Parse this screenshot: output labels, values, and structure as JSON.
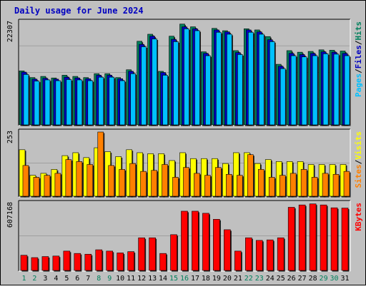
{
  "chart_data": [
    {
      "type": "bar",
      "title": "Daily usage for June 2024",
      "tick_labels": [
        "22307"
      ],
      "categories": [
        "1",
        "2",
        "3",
        "4",
        "5",
        "6",
        "7",
        "8",
        "9",
        "10",
        "11",
        "12",
        "13",
        "14",
        "15",
        "16",
        "17",
        "18",
        "19",
        "20",
        "21",
        "22",
        "23",
        "24",
        "25",
        "26",
        "27",
        "28",
        "29",
        "30",
        "31"
      ],
      "weekend_days": [
        "1",
        "2",
        "8",
        "9",
        "15",
        "16",
        "22",
        "23",
        "29",
        "30"
      ],
      "series": [
        {
          "name": "Hits",
          "color": "#00805c",
          "values": [
            14000,
            12300,
            12600,
            12200,
            12900,
            12600,
            12300,
            13300,
            13300,
            12300,
            14300,
            21600,
            23400,
            13900,
            22900,
            26000,
            25300,
            18900,
            24900,
            24300,
            19200,
            24800,
            24500,
            22800,
            15700,
            19200,
            18800,
            19000,
            19400,
            19300,
            19100
          ]
        },
        {
          "name": "Files",
          "color": "#0000c0",
          "values": [
            13700,
            11900,
            12100,
            11900,
            12400,
            12200,
            12000,
            12900,
            12900,
            12000,
            13900,
            20800,
            22900,
            13600,
            22100,
            25300,
            24800,
            18500,
            24500,
            24000,
            18700,
            24500,
            24000,
            22000,
            15200,
            18500,
            18200,
            18500,
            18900,
            18800,
            18500
          ]
        },
        {
          "name": "Pages",
          "color": "#00c0ff",
          "values": [
            13100,
            11400,
            11700,
            11500,
            11800,
            11700,
            11500,
            12400,
            12400,
            11500,
            13300,
            20200,
            22200,
            12900,
            21500,
            24800,
            24300,
            17900,
            23900,
            23400,
            18200,
            23900,
            23400,
            21500,
            14600,
            17900,
            17600,
            17900,
            18400,
            18300,
            17900
          ]
        }
      ],
      "ylim": [
        0,
        26500
      ]
    },
    {
      "type": "bar",
      "tick_labels": [
        "253"
      ],
      "categories": [
        "1",
        "2",
        "3",
        "4",
        "5",
        "6",
        "7",
        "8",
        "9",
        "10",
        "11",
        "12",
        "13",
        "14",
        "15",
        "16",
        "17",
        "18",
        "19",
        "20",
        "21",
        "22",
        "23",
        "24",
        "25",
        "26",
        "27",
        "28",
        "29",
        "30",
        "31"
      ],
      "series": [
        {
          "name": "Visits",
          "color": "#ffff00",
          "values": [
            240,
            110,
            120,
            140,
            210,
            225,
            200,
            250,
            230,
            205,
            240,
            225,
            220,
            220,
            185,
            225,
            195,
            195,
            195,
            170,
            225,
            225,
            170,
            190,
            180,
            180,
            180,
            165,
            165,
            165,
            165
          ]
        },
        {
          "name": "Sites",
          "color": "#ff8000",
          "values": [
            160,
            100,
            110,
            120,
            190,
            180,
            165,
            330,
            160,
            140,
            170,
            130,
            135,
            165,
            100,
            150,
            120,
            110,
            150,
            115,
            110,
            215,
            140,
            100,
            110,
            120,
            140,
            100,
            120,
            115,
            130
          ]
        }
      ],
      "ylim": [
        0,
        330
      ]
    },
    {
      "type": "bar",
      "tick_labels": [
        "607168"
      ],
      "categories": [
        "1",
        "2",
        "3",
        "4",
        "5",
        "6",
        "7",
        "8",
        "9",
        "10",
        "11",
        "12",
        "13",
        "14",
        "15",
        "16",
        "17",
        "18",
        "19",
        "20",
        "21",
        "22",
        "23",
        "24",
        "25",
        "26",
        "27",
        "28",
        "29",
        "30",
        "31"
      ],
      "series": [
        {
          "name": "KBytes",
          "color": "#ff0000",
          "values": [
            305000,
            260000,
            280000,
            290000,
            385000,
            340000,
            325000,
            410000,
            385000,
            350000,
            375000,
            640000,
            640000,
            340000,
            700000,
            1150000,
            1150000,
            1110000,
            995000,
            795000,
            385000,
            640000,
            590000,
            600000,
            640000,
            1225000,
            1270000,
            1290000,
            1270000,
            1215000,
            1210000
          ]
        }
      ],
      "ylim": [
        0,
        1300000
      ]
    }
  ],
  "colors": {
    "page_bg": "#c0c0c0",
    "plot_bg": "#c0c0c0",
    "grid": "#a0a0a0",
    "title": "#0000c0",
    "weekday_label": "#000000",
    "weekend_label": "#00805c",
    "legend_sep": "#000000"
  },
  "legends": {
    "panel1": [
      {
        "text": "Pages",
        "color": "#00c0ff"
      },
      {
        "text": "/",
        "color": "#000000"
      },
      {
        "text": "Files",
        "color": "#0000c0"
      },
      {
        "text": "/",
        "color": "#000000"
      },
      {
        "text": "Hits",
        "color": "#00805c"
      }
    ],
    "panel2": [
      {
        "text": "Sites",
        "color": "#ff8000"
      },
      {
        "text": "/",
        "color": "#000000"
      },
      {
        "text": "Visits",
        "color": "#ffff00"
      }
    ],
    "panel3": [
      {
        "text": "KBytes",
        "color": "#ff0000"
      }
    ]
  }
}
